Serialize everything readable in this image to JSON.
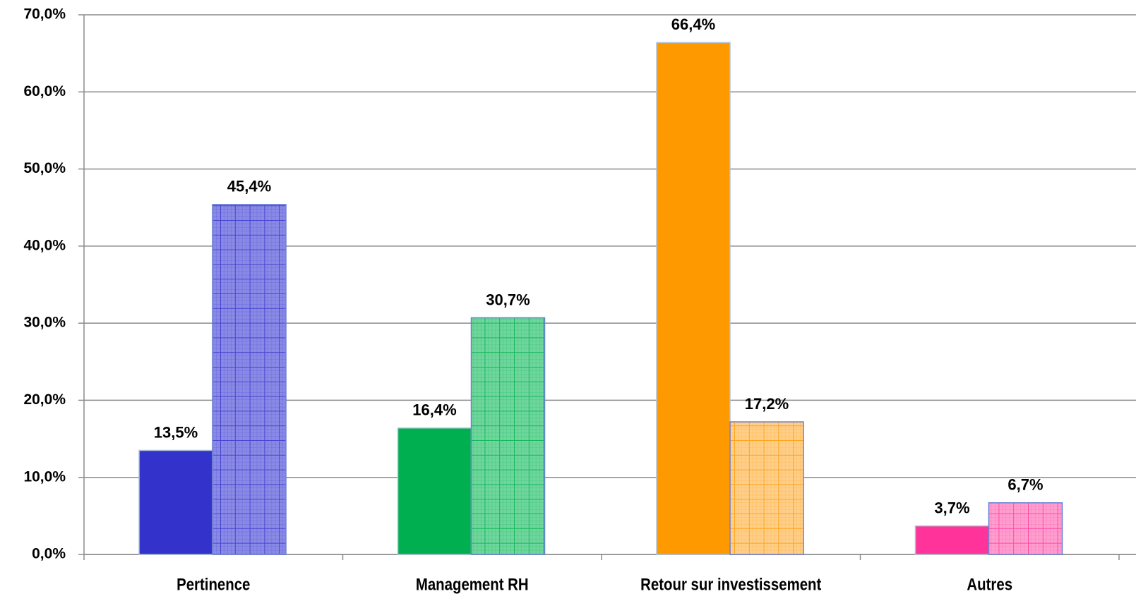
{
  "chart_data": {
    "type": "bar",
    "categories": [
      "Pertinence",
      "Management RH",
      "Retour sur investissement",
      "Autres"
    ],
    "series": [
      {
        "values": [
          13.5,
          16.4,
          66.4,
          3.7
        ],
        "value_labels": [
          "13,5%",
          "16,4%",
          "66,4%",
          "3,7%"
        ],
        "colors": [
          "#3333cc",
          "#00b050",
          "#ff9900",
          "#ff3399"
        ],
        "pattern": "solid"
      },
      {
        "values": [
          45.4,
          30.7,
          17.2,
          6.7
        ],
        "value_labels": [
          "45,4%",
          "30,7%",
          "17,2%",
          "6,7%"
        ],
        "colors": [
          "#8a8ae6",
          "#6fd69c",
          "#ffcf8a",
          "#ff9fcf"
        ],
        "pattern": "grid"
      }
    ],
    "ylim": [
      0,
      70
    ],
    "yticks": [
      {
        "value": 0,
        "label": "0,0%"
      },
      {
        "value": 10,
        "label": "10,0%"
      },
      {
        "value": 20,
        "label": "20,0%"
      },
      {
        "value": 30,
        "label": "30,0%"
      },
      {
        "value": 40,
        "label": "40,0%"
      },
      {
        "value": 50,
        "label": "50,0%"
      },
      {
        "value": 60,
        "label": "60,0%"
      },
      {
        "value": 70,
        "label": "70,0%"
      }
    ],
    "grid": true
  }
}
